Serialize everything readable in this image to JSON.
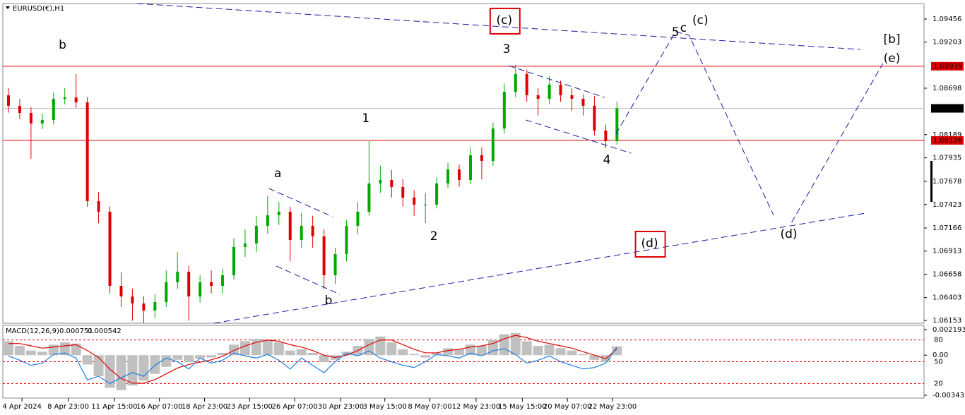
{
  "chart_data": [
    {
      "type": "candlestick",
      "title": "EURUSD(€),H1",
      "up_color": "#00a800",
      "down_color": "#e00000",
      "open": [
        1.0862,
        1.08505,
        1.08427,
        1.08311,
        1.0835,
        1.08582,
        1.08597,
        1.08543,
        1.0746,
        1.07344,
        1.06532,
        1.06416,
        1.06339,
        1.06261,
        1.06354,
        1.06571,
        1.06687,
        1.06416,
        1.06571,
        1.06532,
        1.06648,
        1.06958,
        1.06996,
        1.0719,
        1.07306,
        1.07344,
        1.07035,
        1.0719,
        1.07074,
        1.06648,
        1.0688,
        1.0719,
        1.07344,
        1.07654,
        1.07692,
        1.07615,
        1.07499,
        1.07422,
        1.07422,
        1.07654,
        1.07808,
        1.07692,
        1.07963,
        1.07901,
        1.08257,
        1.08659,
        1.08853,
        1.08621,
        1.08582,
        1.08737,
        1.08621,
        1.08582,
        1.08505,
        1.08234,
        1.08118
      ],
      "high": [
        1.087,
        1.0858,
        1.0849,
        1.0842,
        1.0865,
        1.087,
        1.08853,
        1.086,
        1.0756,
        1.074,
        1.0668,
        1.065,
        1.0642,
        1.0644,
        1.067,
        1.069,
        1.0675,
        1.0665,
        1.067,
        1.0672,
        1.0705,
        1.0715,
        1.073,
        1.0752,
        1.0745,
        1.074,
        1.0733,
        1.073,
        1.0715,
        1.0695,
        1.0725,
        1.0745,
        1.08118,
        1.0785,
        1.078,
        1.077,
        1.0758,
        1.0755,
        1.0772,
        1.0788,
        1.0786,
        1.0805,
        1.0805,
        1.0832,
        1.0875,
        1.08953,
        1.089,
        1.087,
        1.0883,
        1.0878,
        1.087,
        1.0863,
        1.0861,
        1.083,
        1.0855
      ],
      "low": [
        1.0843,
        1.0836,
        1.07925,
        1.0825,
        1.083,
        1.0852,
        1.0848,
        1.074,
        1.0722,
        1.0645,
        1.063,
        1.0615,
        1.06122,
        1.0618,
        1.063,
        1.065,
        1.0615,
        1.0635,
        1.0645,
        1.0645,
        1.066,
        1.0685,
        1.069,
        1.071,
        1.072,
        1.068,
        1.0695,
        1.0695,
        1.065,
        1.0655,
        1.068,
        1.071,
        1.073,
        1.0755,
        1.075,
        1.074,
        1.073,
        1.0722,
        1.0738,
        1.076,
        1.0762,
        1.0765,
        1.077,
        1.0785,
        1.082,
        1.086,
        1.0855,
        1.084,
        1.0852,
        1.0855,
        1.0845,
        1.084,
        1.0818,
        1.0804,
        1.0808
      ],
      "close": [
        1.08505,
        1.08427,
        1.08311,
        1.0835,
        1.08582,
        1.08597,
        1.08543,
        1.0746,
        1.07344,
        1.06532,
        1.06416,
        1.06339,
        1.06261,
        1.06354,
        1.06571,
        1.06687,
        1.06416,
        1.06571,
        1.06532,
        1.06648,
        1.06958,
        1.06996,
        1.0719,
        1.07306,
        1.07344,
        1.07035,
        1.0719,
        1.07074,
        1.06648,
        1.0688,
        1.0719,
        1.07344,
        1.07654,
        1.07692,
        1.07615,
        1.07499,
        1.07422,
        1.07422,
        1.07654,
        1.07808,
        1.07692,
        1.07963,
        1.07901,
        1.08257,
        1.08659,
        1.08853,
        1.08621,
        1.08582,
        1.08737,
        1.08621,
        1.08582,
        1.08505,
        1.08234,
        1.08118,
        1.08477
      ],
      "xlim": [
        -0.5,
        81.25
      ],
      "ylim": [
        1.06122,
        1.09626
      ],
      "yticks": [
        1.09456,
        1.09203,
        1.08698,
        1.08189,
        1.07935,
        1.07678,
        1.07423,
        1.07166,
        1.06913,
        1.06658,
        1.06403,
        1.06153
      ],
      "levels": [
        {
          "value": 1.08939,
          "color": "#e00000",
          "label_fill": "#e00000"
        },
        {
          "value": 1.08126,
          "color": "#e00000",
          "label_fill": "#e00000"
        },
        {
          "value": 1.08477,
          "color": "#c0c0c0",
          "label_fill": "#000000"
        }
      ],
      "lines": [
        {
          "color": "#1a1aa0",
          "points": [
            [
              11.4,
              1.09626
            ],
            [
              75.6,
              1.09123
            ]
          ]
        },
        {
          "color": "#1a1aa0",
          "points": [
            [
              18.25,
              1.06122
            ],
            [
              76.06,
              1.07329
            ]
          ]
        },
        {
          "color": "#1a1aa0",
          "points": [
            [
              23.1,
              1.076
            ],
            [
              28.75,
              1.0729
            ]
          ]
        },
        {
          "color": "#1a1aa0",
          "points": [
            [
              23.75,
              1.06749
            ],
            [
              29.4,
              1.06439
            ]
          ]
        },
        {
          "color": "#1a1aa0",
          "points": [
            [
              44.4,
              1.08945
            ],
            [
              52.9,
              1.08597
            ]
          ]
        },
        {
          "color": "#1a1aa0",
          "points": [
            [
              45.9,
              1.0835
            ],
            [
              55.25,
              1.07986
            ]
          ]
        },
        {
          "color": "#1a1aa0",
          "points": [
            [
              53.9,
              1.08195
            ],
            [
              59.2,
              1.09317
            ],
            [
              60.4,
              1.09278
            ],
            [
              67.9,
              1.07306
            ]
          ]
        },
        {
          "color": "#1a1aa0",
          "points": [
            [
              69.5,
              1.07228
            ],
            [
              77.6,
              1.08969
            ]
          ]
        }
      ],
      "annotations": [
        {
          "text": "b",
          "x": 4.8,
          "y": 1.0917,
          "color": "#e020e0"
        },
        {
          "text": "1",
          "x": 31.7,
          "y": 1.08365,
          "color": "#000000"
        },
        {
          "text": "a",
          "x": 23.9,
          "y": 1.07762,
          "color": "#e020e0"
        },
        {
          "text": "b",
          "x": 28.4,
          "y": 1.0637,
          "color": "#e020e0"
        },
        {
          "text": "2",
          "x": 37.75,
          "y": 1.07074,
          "color": "#000000"
        },
        {
          "text": "3",
          "x": 44.2,
          "y": 1.09123,
          "color": "#000000"
        },
        {
          "text": "(c)",
          "x": 44,
          "y": 1.09441,
          "color": "#1a1ad0",
          "boxed": true
        },
        {
          "text": "4",
          "x": 53.1,
          "y": 1.07909,
          "color": "#000000"
        },
        {
          "text": "5",
          "x": 59.2,
          "y": 1.09309,
          "color": "#000000"
        },
        {
          "text": "c",
          "x": 59.9,
          "y": 1.09355,
          "color": "#e020e0"
        },
        {
          "text": "(c)",
          "x": 61.4,
          "y": 1.09441,
          "color": "#1a1ad0"
        },
        {
          "text": "[b]",
          "x": 78.4,
          "y": 1.09232,
          "color": "#208020"
        },
        {
          "text": "(e)",
          "x": 78.4,
          "y": 1.09023,
          "color": "#1a1ad0"
        },
        {
          "text": "(d)",
          "x": 56.9,
          "y": 1.06996,
          "color": "#1a1ad0",
          "boxed": true
        },
        {
          "text": "(d)",
          "x": 69.25,
          "y": 1.07097,
          "color": "#1a1ad0"
        }
      ]
    },
    {
      "type": "macd",
      "title": "MACD(12,26,9)",
      "xlim": [
        -0.5,
        81.25
      ],
      "xticks": [
        {
          "value": 1.2,
          "label": "4 Apr 2024"
        },
        {
          "value": 5.3,
          "label": "8 Apr 23:00"
        },
        {
          "value": 9.4,
          "label": "11 Apr 15:00"
        },
        {
          "value": 13.4,
          "label": "16 Apr 07:00"
        },
        {
          "value": 17.4,
          "label": "18 Apr 23:00"
        },
        {
          "value": 21.4,
          "label": "23 Apr 15:00"
        },
        {
          "value": 25.4,
          "label": "26 Apr 07:00"
        },
        {
          "value": 29.5,
          "label": "30 Apr 23:00"
        },
        {
          "value": 33.4,
          "label": "3 May 15:00"
        },
        {
          "value": 37.4,
          "label": "8 May 07:00"
        },
        {
          "value": 41.5,
          "label": "12 May 23:00"
        },
        {
          "value": 45.6,
          "label": "15 May 15:00"
        },
        {
          "value": 49.6,
          "label": "20 May 07:00"
        },
        {
          "value": 53.6,
          "label": "22 May 23:00"
        }
      ],
      "ylim": [
        -0.003677,
        0.002556
      ],
      "yticks": [
        0.002193,
        {
          "value": 0,
          "label": "0.00"
        },
        -0.003435
      ],
      "y2lim": [
        0,
        100
      ],
      "y2ticks": [
        80,
        50,
        20
      ],
      "series": [
        {
          "kind": "histogram",
          "color": "#c0c0c0",
          "values": [
            0.0012,
            0.0008,
            0.0004,
            0.0003,
            0.0009,
            0.0011,
            0.001,
            -0.0008,
            -0.0018,
            -0.0028,
            -0.003,
            -0.0026,
            -0.0022,
            -0.0016,
            -0.001,
            -0.0004,
            -0.0006,
            -0.0003,
            -0.0002,
            0.0002,
            0.0009,
            0.0012,
            0.0014,
            0.0013,
            0.0011,
            0.0004,
            0.0005,
            0.0002,
            -0.0006,
            -0.0004,
            0.0003,
            0.0008,
            0.0014,
            0.0016,
            0.0011,
            0.0005,
            0.0001,
            -0.0002,
            0.0002,
            0.0006,
            0.0005,
            0.0009,
            0.0008,
            0.0013,
            0.0018,
            0.0019,
            0.0012,
            0.0008,
            0.0009,
            0.0006,
            0.0004,
            0.0001,
            -0.0004,
            -0.0006,
            0.000751
          ]
        },
        {
          "kind": "line",
          "color": "#e00000",
          "values": [
            0.001,
            0.001,
            0.0008,
            0.0006,
            0.0007,
            0.0008,
            0.0009,
            0.0004,
            -0.0002,
            -0.0012,
            -0.002,
            -0.0024,
            -0.0024,
            -0.0021,
            -0.0016,
            -0.0011,
            -0.0008,
            -0.0006,
            -0.0004,
            -0.0001,
            0.0004,
            0.0008,
            0.0011,
            0.0013,
            0.0012,
            0.0009,
            0.0007,
            0.0004,
            0,
            -0.0002,
            0,
            0.0004,
            0.0009,
            0.0013,
            0.0013,
            0.0009,
            0.0005,
            0.0002,
            0.0002,
            0.0004,
            0.0005,
            0.0007,
            0.0008,
            0.001,
            0.0014,
            0.0017,
            0.0015,
            0.0012,
            0.001,
            0.0008,
            0.0006,
            0.0003,
            0,
            -0.0003,
            0.000542
          ]
        },
        {
          "kind": "line",
          "axis": "y2",
          "color": "#1e7fe0",
          "values": [
            58,
            52,
            45,
            48,
            60,
            62,
            55,
            25,
            30,
            20,
            28,
            35,
            30,
            45,
            55,
            50,
            40,
            55,
            48,
            52,
            62,
            58,
            55,
            60,
            52,
            40,
            55,
            45,
            35,
            50,
            62,
            58,
            65,
            55,
            50,
            45,
            42,
            50,
            60,
            58,
            55,
            62,
            58,
            65,
            68,
            60,
            48,
            52,
            58,
            50,
            45,
            40,
            42,
            48,
            70
          ]
        }
      ]
    }
  ]
}
